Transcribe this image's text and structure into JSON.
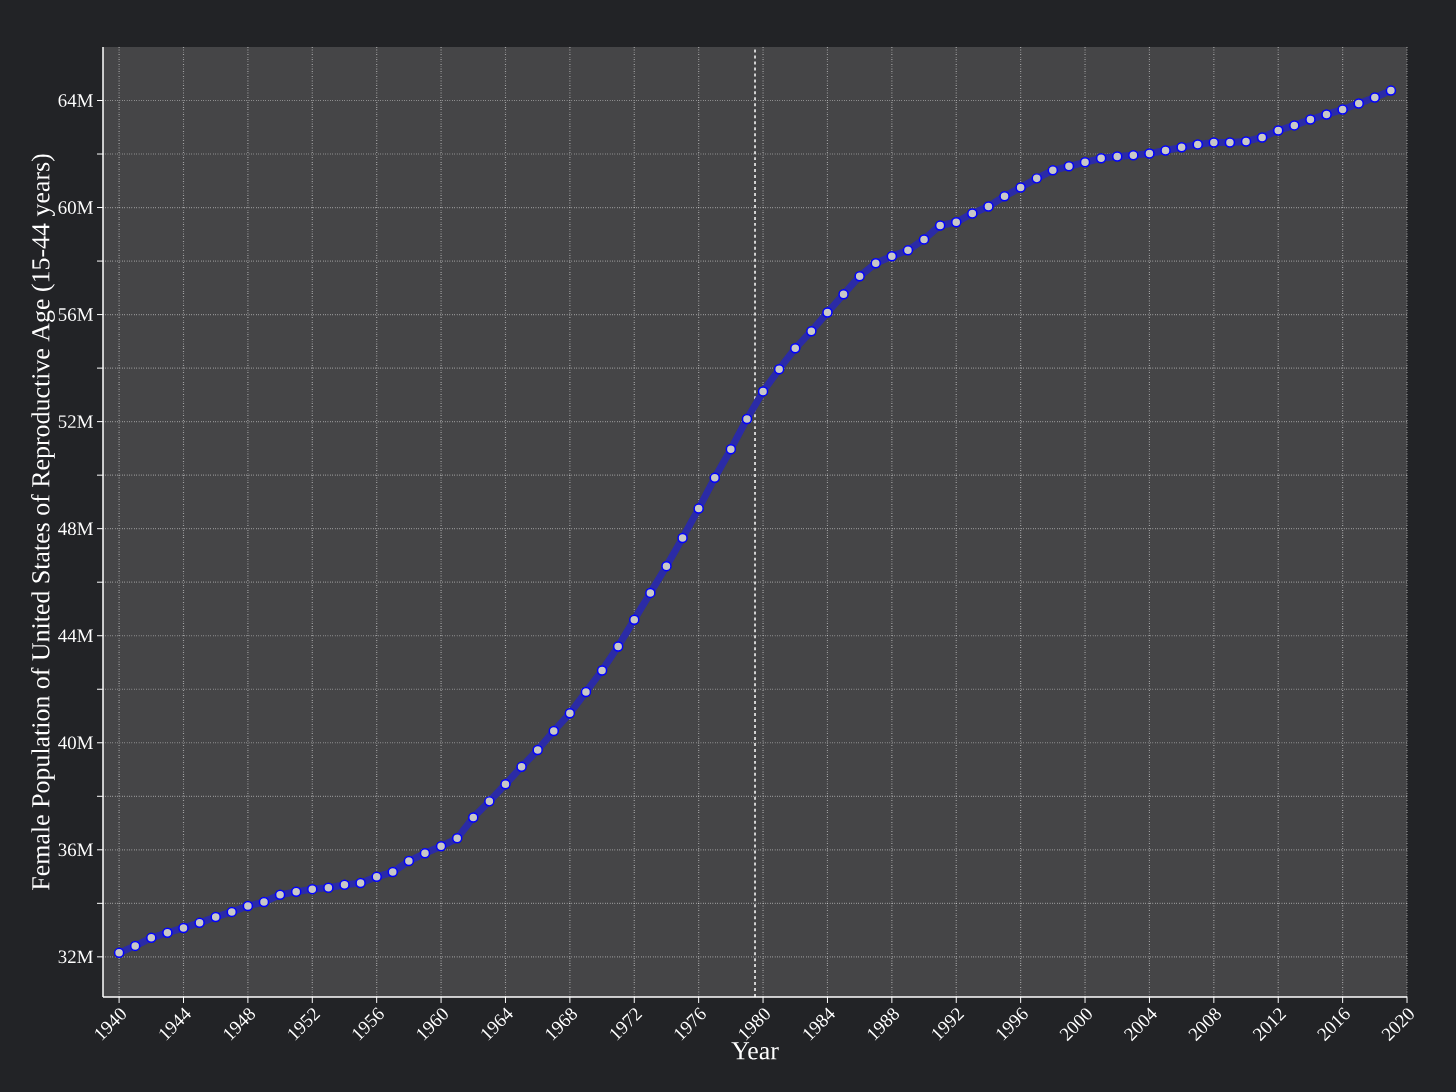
{
  "chart_data": {
    "type": "line",
    "xlabel": "Year",
    "ylabel": "Female Population of United States of Reproductive Age (15-44 years)",
    "x": [
      1940,
      1941,
      1942,
      1943,
      1944,
      1945,
      1946,
      1947,
      1948,
      1949,
      1950,
      1951,
      1952,
      1953,
      1954,
      1955,
      1956,
      1957,
      1958,
      1959,
      1960,
      1961,
      1962,
      1963,
      1964,
      1965,
      1966,
      1967,
      1968,
      1969,
      1970,
      1971,
      1972,
      1973,
      1974,
      1975,
      1976,
      1977,
      1978,
      1979,
      1980,
      1981,
      1982,
      1983,
      1984,
      1985,
      1986,
      1987,
      1988,
      1989,
      1990,
      1991,
      1992,
      1993,
      1994,
      1995,
      1996,
      1997,
      1998,
      1999,
      2000,
      2001,
      2002,
      2003,
      2004,
      2005,
      2006,
      2007,
      2008,
      2009,
      2010,
      2011,
      2012,
      2013,
      2014,
      2015,
      2016,
      2017,
      2018,
      2019
    ],
    "series": [
      {
        "color": "#2b2ba6",
        "values": [
          32.15,
          32.41,
          32.71,
          32.9,
          33.08,
          33.27,
          33.49,
          33.68,
          33.9,
          34.05,
          34.32,
          34.43,
          34.53,
          34.58,
          34.69,
          34.76,
          34.99,
          35.17,
          35.58,
          35.87,
          36.13,
          36.43,
          37.21,
          37.81,
          38.45,
          39.1,
          39.73,
          40.44,
          41.1,
          41.9,
          42.7,
          43.6,
          44.6,
          45.6,
          46.6,
          47.65,
          48.75,
          49.9,
          50.97,
          52.1,
          53.13,
          53.96,
          54.74,
          55.38,
          56.08,
          56.76,
          57.43,
          57.92,
          58.18,
          58.4,
          58.81,
          59.33,
          59.45,
          59.78,
          60.04,
          60.42,
          60.75,
          61.09,
          61.39,
          61.54,
          61.69,
          61.84,
          61.91,
          61.95,
          62.02,
          62.13,
          62.25,
          62.36,
          62.43,
          62.43,
          62.47,
          62.62,
          62.88,
          63.07,
          63.29,
          63.48,
          63.66,
          63.89,
          64.11,
          64.37
        ]
      }
    ],
    "xlim": [
      1939,
      2020
    ],
    "ylim": [
      30.5,
      66
    ],
    "xticks": [
      1940,
      1944,
      1948,
      1952,
      1956,
      1960,
      1964,
      1968,
      1972,
      1976,
      1980,
      1984,
      1988,
      1992,
      1996,
      2000,
      2004,
      2008,
      2012,
      2016,
      2020
    ],
    "yticks": [
      {
        "value": 32,
        "label": "32M"
      },
      {
        "value": 34,
        "label": null
      },
      {
        "value": 36,
        "label": "36M"
      },
      {
        "value": 38,
        "label": null
      },
      {
        "value": 40,
        "label": "40M"
      },
      {
        "value": 42,
        "label": null
      },
      {
        "value": 44,
        "label": "44M"
      },
      {
        "value": 46,
        "label": null
      },
      {
        "value": 48,
        "label": "48M"
      },
      {
        "value": 50,
        "label": null
      },
      {
        "value": 52,
        "label": "52M"
      },
      {
        "value": 54,
        "label": null
      },
      {
        "value": 56,
        "label": "56M"
      },
      {
        "value": 58,
        "label": null
      },
      {
        "value": 60,
        "label": "60M"
      },
      {
        "value": 62,
        "label": null
      },
      {
        "value": 64,
        "label": "64M"
      }
    ],
    "ref_lines": [
      {
        "axis": "x",
        "value": 1979.5,
        "color": "#ffffff",
        "line_style": "dashed"
      }
    ],
    "grid": true,
    "marker": "circle",
    "line_style": "solid"
  }
}
